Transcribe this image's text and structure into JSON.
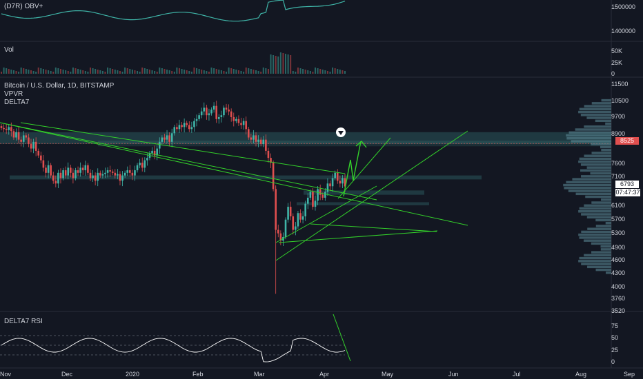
{
  "panes": {
    "obv": {
      "title": "(D7R) OBV+",
      "ticks": [
        "1500000",
        "1400000"
      ]
    },
    "vol": {
      "title": "Vol",
      "ticks": [
        "50K",
        "25K",
        "0"
      ]
    },
    "main": {
      "title": "Bitcoin / U.S. Dollar, 1D, BITSTAMP",
      "indicators": [
        "VPVR",
        "DELTA7"
      ],
      "ticks": [
        "11500",
        "10500",
        "9700",
        "8900",
        "8525",
        "7600",
        "7100",
        "6793",
        "6100",
        "5700",
        "5300",
        "4900",
        "4600",
        "4300",
        "4000",
        "3760"
      ],
      "price_tag": "6793",
      "countdown": "07:47:37",
      "level_tag": "8525"
    },
    "rsi": {
      "title": "DELTA7 RSI",
      "ticks": [
        "3520",
        "75",
        "50",
        "25",
        "0"
      ]
    }
  },
  "x_axis": [
    "Nov",
    "Dec",
    "2020",
    "Feb",
    "Mar",
    "Apr",
    "May",
    "Jun",
    "Jul",
    "Aug",
    "Sep"
  ],
  "colors": {
    "bg": "#131722",
    "bull": "#3fb5a8",
    "bear": "#e04f4f",
    "trend": "#33d12a",
    "zone": "#4fb8b0",
    "vp": "#5f8e9a"
  },
  "chart_data": {
    "type": "candlestick",
    "title": "Bitcoin / U.S. Dollar, 1D, BITSTAMP",
    "ylim": [
      3520,
      11800
    ],
    "y_scale": "log",
    "close": [
      9250,
      9200,
      9150,
      9300,
      9100,
      8800,
      9050,
      8700,
      8600,
      8900,
      8800,
      8500,
      8300,
      8600,
      8200,
      8000,
      7800,
      7500,
      7300,
      7600,
      7200,
      7000,
      6900,
      7300,
      7100,
      7400,
      7200,
      7500,
      7300,
      7100,
      7400,
      7300,
      7500,
      7400,
      7600,
      7300,
      7100,
      7200,
      7000,
      7300,
      7200,
      7250,
      7300,
      7400,
      7350,
      7300,
      7200,
      7250,
      7000,
      7200,
      7300,
      7400,
      7300,
      7200,
      7400,
      7600,
      7700,
      7500,
      7800,
      7900,
      8100,
      8200,
      8000,
      8300,
      8600,
      8800,
      8700,
      8900,
      8600,
      9000,
      9300,
      9200,
      9400,
      9300,
      9500,
      9400,
      9200,
      9300,
      9600,
      9700,
      9900,
      10100,
      10300,
      9900,
      10000,
      10200,
      10400,
      9700,
      9800,
      9900,
      10300,
      10200,
      10100,
      9800,
      9600,
      9700,
      9500,
      9400,
      9600,
      9200,
      8800,
      8700,
      8900,
      8600,
      8700,
      8500,
      8700,
      8200,
      7900,
      7700,
      6700,
      5400,
      5300,
      5100,
      5200,
      5700,
      6100,
      5800,
      5400,
      5500,
      5900,
      5700,
      5800,
      6200,
      6400,
      6600,
      6100,
      6300,
      6700,
      6500,
      6400,
      6600,
      6900,
      6800,
      7100,
      7300,
      7000,
      6900,
      7100,
      6793
    ],
    "rsi_levels": [
      75,
      50,
      25
    ],
    "horizontal_zones": [
      {
        "from": 8500,
        "to": 9050
      },
      {
        "from": 7050,
        "to": 7200
      },
      {
        "from": 6500,
        "to": 6650
      },
      {
        "from": 6150,
        "to": 6250
      }
    ]
  }
}
